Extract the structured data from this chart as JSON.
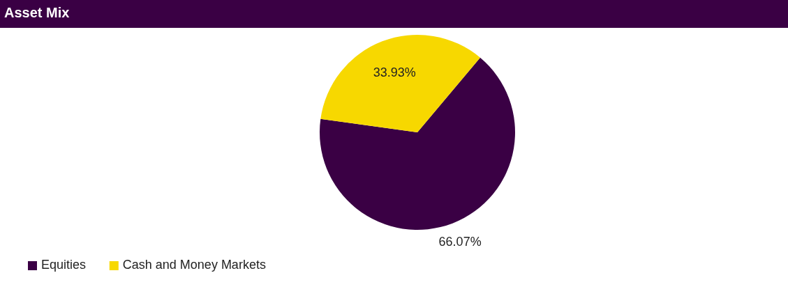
{
  "chart_data": {
    "type": "pie",
    "title": "Asset Mix",
    "categories": [
      "Equities",
      "Cash and Money Markets"
    ],
    "values": [
      66.07,
      33.93
    ],
    "colors": [
      "#3a0044",
      "#f7d800"
    ],
    "value_labels": [
      "66.07%",
      "33.93%"
    ],
    "legend": "bottom left"
  }
}
